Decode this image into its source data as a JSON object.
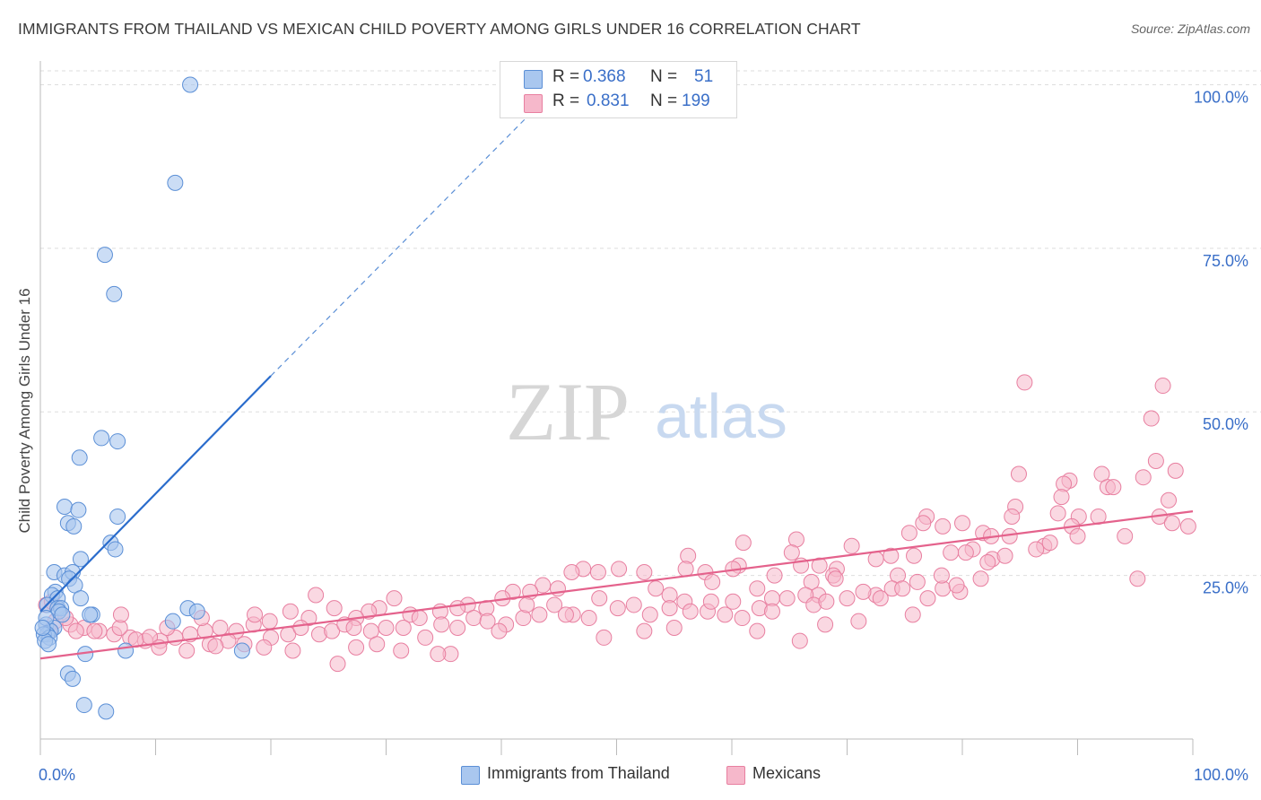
{
  "title": "IMMIGRANTS FROM THAILAND VS MEXICAN CHILD POVERTY AMONG GIRLS UNDER 16 CORRELATION CHART",
  "source": "Source: ZipAtlas.com",
  "watermark": {
    "zip": "ZIP",
    "atlas": "atlas"
  },
  "colors": {
    "blue_fill": "#a9c7ef",
    "blue_stroke": "#5b8fd6",
    "blue_line": "#2a6ccc",
    "pink_fill": "#f6b8cb",
    "pink_stroke": "#e87fa0",
    "pink_line": "#e4628c",
    "axis_text": "#3a6fc8",
    "grid": "#dddddd"
  },
  "legend": {
    "r_label": "R =",
    "n_label": "N =",
    "series1": {
      "r": "0.368",
      "n": "51"
    },
    "series2": {
      "r": "0.831",
      "n": "199"
    }
  },
  "bottom_legend": {
    "series1": "Immigrants from Thailand",
    "series2": "Mexicans"
  },
  "chart_data": {
    "type": "scatter",
    "title": "IMMIGRANTS FROM THAILAND VS MEXICAN CHILD POVERTY AMONG GIRLS UNDER 16 CORRELATION CHART",
    "xlabel": "",
    "ylabel": "Child Poverty Among Girls Under 16",
    "xlim": [
      0,
      100
    ],
    "ylim": [
      0,
      105
    ],
    "x_tick_labels": [
      "0.0%",
      "100.0%"
    ],
    "y_tick_labels": [
      "25.0%",
      "50.0%",
      "75.0%",
      "100.0%"
    ],
    "y_ticks": [
      25,
      50,
      75,
      100
    ],
    "grid": true,
    "legend_position": "top-center",
    "series": [
      {
        "name": "Immigrants from Thailand",
        "r": 0.368,
        "n": 51,
        "trend": {
          "x": [
            0,
            20
          ],
          "y": [
            19.5,
            55.5
          ],
          "dashed_to": [
            45,
            100
          ]
        },
        "points": [
          [
            13,
            100
          ],
          [
            11.7,
            85
          ],
          [
            5.6,
            74
          ],
          [
            6.4,
            68
          ],
          [
            5.3,
            46
          ],
          [
            6.7,
            45.5
          ],
          [
            3.4,
            43
          ],
          [
            2.1,
            35.5
          ],
          [
            3.3,
            35
          ],
          [
            6.7,
            34
          ],
          [
            2.4,
            33
          ],
          [
            2.9,
            32.5
          ],
          [
            6.1,
            30
          ],
          [
            6.5,
            29
          ],
          [
            3.5,
            27.5
          ],
          [
            1.2,
            25.5
          ],
          [
            2.1,
            25
          ],
          [
            2.8,
            25.5
          ],
          [
            2.5,
            24.5
          ],
          [
            3.0,
            23.5
          ],
          [
            1.3,
            22.5
          ],
          [
            1.0,
            22
          ],
          [
            1.5,
            21.5
          ],
          [
            3.5,
            21.5
          ],
          [
            0.6,
            20.5
          ],
          [
            1.5,
            20
          ],
          [
            1.8,
            20
          ],
          [
            1.6,
            19.5
          ],
          [
            12.8,
            20
          ],
          [
            13.6,
            19.5
          ],
          [
            4.5,
            19
          ],
          [
            11.5,
            18
          ],
          [
            0.5,
            17.5
          ],
          [
            1.2,
            17
          ],
          [
            0.9,
            16.5
          ],
          [
            0.6,
            16
          ],
          [
            0.3,
            16
          ],
          [
            0.8,
            15.5
          ],
          [
            0.4,
            15
          ],
          [
            0.7,
            14.5
          ],
          [
            3.9,
            13
          ],
          [
            7.4,
            13.5
          ],
          [
            17.5,
            13.5
          ],
          [
            2.4,
            10
          ],
          [
            2.8,
            9.2
          ],
          [
            3.8,
            5.2
          ],
          [
            5.7,
            4.2
          ],
          [
            0.5,
            18.5
          ],
          [
            1.9,
            19
          ],
          [
            4.3,
            19
          ],
          [
            0.2,
            17
          ]
        ]
      },
      {
        "name": "Mexicans",
        "r": 0.831,
        "n": 199,
        "trend": {
          "x": [
            0,
            100
          ],
          "y": [
            12.3,
            34.8
          ]
        },
        "points": [
          [
            85.4,
            54.5
          ],
          [
            97.4,
            54
          ],
          [
            96.4,
            49
          ],
          [
            96.8,
            42.5
          ],
          [
            98.5,
            41
          ],
          [
            92.1,
            40.5
          ],
          [
            84.9,
            40.5
          ],
          [
            95.7,
            40
          ],
          [
            89.3,
            39.5
          ],
          [
            88.8,
            39
          ],
          [
            92.6,
            38.5
          ],
          [
            93.1,
            38.5
          ],
          [
            88.6,
            37
          ],
          [
            97.9,
            36.5
          ],
          [
            84.6,
            35.5
          ],
          [
            88.3,
            34.5
          ],
          [
            90.1,
            34
          ],
          [
            76.9,
            34
          ],
          [
            84.3,
            34
          ],
          [
            91.8,
            34
          ],
          [
            97.1,
            34
          ],
          [
            98.2,
            33
          ],
          [
            99.6,
            32.5
          ],
          [
            89.5,
            32.5
          ],
          [
            76.6,
            33
          ],
          [
            78.3,
            32.5
          ],
          [
            80.0,
            33
          ],
          [
            94.1,
            31
          ],
          [
            81.8,
            31.5
          ],
          [
            82.5,
            31
          ],
          [
            84.1,
            31
          ],
          [
            90.0,
            31
          ],
          [
            75.4,
            31.5
          ],
          [
            65.6,
            30.5
          ],
          [
            87.1,
            29.5
          ],
          [
            70.4,
            29.5
          ],
          [
            80.9,
            29
          ],
          [
            80.3,
            28.5
          ],
          [
            79.0,
            28.5
          ],
          [
            75.8,
            28
          ],
          [
            86.4,
            29
          ],
          [
            87.6,
            30
          ],
          [
            82.6,
            27.5
          ],
          [
            83.7,
            28
          ],
          [
            73.8,
            28
          ],
          [
            72.5,
            27.5
          ],
          [
            65.2,
            28.5
          ],
          [
            61.0,
            30
          ],
          [
            56.2,
            28
          ],
          [
            60.6,
            26.5
          ],
          [
            56.0,
            26
          ],
          [
            52.4,
            25.5
          ],
          [
            60.1,
            26
          ],
          [
            69.1,
            26
          ],
          [
            74.4,
            25
          ],
          [
            66.0,
            26.5
          ],
          [
            67.6,
            26.5
          ],
          [
            57.7,
            25.5
          ],
          [
            63.7,
            25
          ],
          [
            68.8,
            25
          ],
          [
            50.2,
            26
          ],
          [
            58.3,
            24
          ],
          [
            53.4,
            23
          ],
          [
            62.2,
            23
          ],
          [
            66.9,
            24
          ],
          [
            69.0,
            24.5
          ],
          [
            73.9,
            23
          ],
          [
            79.8,
            22.5
          ],
          [
            78.3,
            23
          ],
          [
            95.2,
            24.5
          ],
          [
            77.0,
            21.5
          ],
          [
            72.5,
            22
          ],
          [
            67.5,
            22
          ],
          [
            63.5,
            21.5
          ],
          [
            60.1,
            21
          ],
          [
            55.9,
            21
          ],
          [
            54.6,
            22
          ],
          [
            48.4,
            25.5
          ],
          [
            47.1,
            26
          ],
          [
            46.1,
            25.5
          ],
          [
            44.9,
            23
          ],
          [
            43.6,
            23.5
          ],
          [
            42.5,
            22.5
          ],
          [
            41.0,
            22.5
          ],
          [
            40.1,
            21.5
          ],
          [
            38.7,
            20
          ],
          [
            37.1,
            20.5
          ],
          [
            36.2,
            20
          ],
          [
            34.7,
            19.5
          ],
          [
            32.1,
            19
          ],
          [
            30.7,
            21.5
          ],
          [
            29.4,
            20
          ],
          [
            28.5,
            19.5
          ],
          [
            27.4,
            18.5
          ],
          [
            25.5,
            20
          ],
          [
            23.9,
            22
          ],
          [
            23.3,
            18.5
          ],
          [
            21.7,
            19.5
          ],
          [
            19.9,
            18
          ],
          [
            18.5,
            17.5
          ],
          [
            17.0,
            16.5
          ],
          [
            15.6,
            17
          ],
          [
            14.3,
            16.5
          ],
          [
            13.0,
            16
          ],
          [
            11.7,
            15.5
          ],
          [
            10.4,
            15
          ],
          [
            9.1,
            15
          ],
          [
            7.8,
            15.5
          ],
          [
            6.4,
            16
          ],
          [
            5.1,
            16.5
          ],
          [
            3.8,
            17
          ],
          [
            2.6,
            17.5
          ],
          [
            1.3,
            18
          ],
          [
            0.5,
            20.5
          ],
          [
            1.0,
            21
          ],
          [
            3.1,
            16.5
          ],
          [
            4.7,
            16.5
          ],
          [
            6.9,
            17
          ],
          [
            8.3,
            15.2
          ],
          [
            9.5,
            15.6
          ],
          [
            10.3,
            14
          ],
          [
            12.7,
            13.5
          ],
          [
            14.7,
            14.5
          ],
          [
            16.3,
            15
          ],
          [
            17.7,
            14.5
          ],
          [
            20.0,
            15.5
          ],
          [
            21.5,
            16
          ],
          [
            22.6,
            17
          ],
          [
            24.2,
            16
          ],
          [
            25.3,
            16.5
          ],
          [
            26.4,
            17.5
          ],
          [
            27.2,
            17
          ],
          [
            28.7,
            16.5
          ],
          [
            30.0,
            17
          ],
          [
            31.5,
            17
          ],
          [
            32.9,
            18.5
          ],
          [
            33.4,
            15.5
          ],
          [
            34.8,
            17.5
          ],
          [
            36.2,
            17
          ],
          [
            37.6,
            18.5
          ],
          [
            38.8,
            18
          ],
          [
            40.4,
            17.5
          ],
          [
            41.9,
            18.5
          ],
          [
            42.2,
            20.5
          ],
          [
            43.3,
            19
          ],
          [
            44.6,
            20.5
          ],
          [
            46.2,
            19
          ],
          [
            47.6,
            18.5
          ],
          [
            48.5,
            21.5
          ],
          [
            50.1,
            20
          ],
          [
            51.5,
            20.5
          ],
          [
            52.9,
            19
          ],
          [
            54.6,
            20
          ],
          [
            56.4,
            19.5
          ],
          [
            57.9,
            19.5
          ],
          [
            59.4,
            19
          ],
          [
            60.9,
            18.5
          ],
          [
            62.4,
            20
          ],
          [
            63.5,
            19.5
          ],
          [
            64.8,
            21.5
          ],
          [
            66.4,
            22
          ],
          [
            67.1,
            20.5
          ],
          [
            68.2,
            21
          ],
          [
            70.0,
            21.5
          ],
          [
            71.4,
            22.5
          ],
          [
            72.9,
            21.5
          ],
          [
            74.8,
            23
          ],
          [
            76.1,
            24
          ],
          [
            78.2,
            25
          ],
          [
            79.5,
            23.5
          ],
          [
            81.6,
            24.5
          ],
          [
            82.2,
            27
          ],
          [
            62.2,
            16.5
          ],
          [
            68.1,
            17.5
          ],
          [
            27.4,
            14
          ],
          [
            31.3,
            13.5
          ],
          [
            35.6,
            13
          ],
          [
            19.4,
            14
          ],
          [
            15.2,
            14.2
          ],
          [
            21.9,
            13.5
          ],
          [
            29.2,
            14.5
          ],
          [
            34.5,
            13
          ],
          [
            25.8,
            11.5
          ],
          [
            45.6,
            19
          ],
          [
            52.4,
            16.5
          ],
          [
            58.2,
            21
          ],
          [
            65.9,
            15
          ],
          [
            71.0,
            18
          ],
          [
            75.7,
            19
          ],
          [
            55.0,
            17
          ],
          [
            48.9,
            15.5
          ],
          [
            39.8,
            16.5
          ],
          [
            14.0,
            18.5
          ],
          [
            7.0,
            19
          ],
          [
            2.2,
            18.5
          ],
          [
            0.8,
            16.5
          ],
          [
            11.0,
            17
          ],
          [
            18.6,
            19
          ]
        ]
      }
    ]
  }
}
